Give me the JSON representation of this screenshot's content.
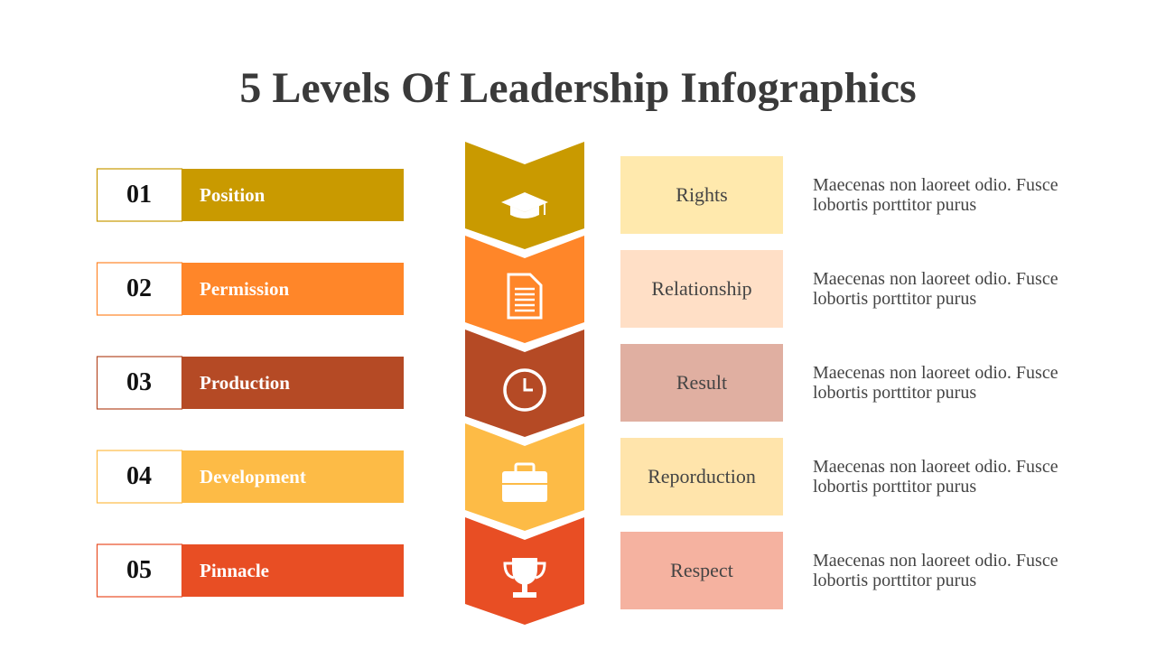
{
  "title": "5 Levels Of Leadership Infographics",
  "levels": [
    {
      "number": "01",
      "name": "Position",
      "keyword": "Rights",
      "description": "Maecenas non laoreet odio. Fusce lobortis porttitor purus",
      "color": "#C99A00",
      "pale": "#FFE9AD"
    },
    {
      "number": "02",
      "name": "Permission",
      "keyword": "Relationship",
      "description": "Maecenas non laoreet odio. Fusce lobortis porttitor purus",
      "color": "#FF8629",
      "pale": "#FFDFC6"
    },
    {
      "number": "03",
      "name": "Production",
      "keyword": "Result",
      "description": "Maecenas non laoreet odio. Fusce lobortis porttitor purus",
      "color": "#B54A25",
      "pale": "#E0AFA1"
    },
    {
      "number": "04",
      "name": "Development",
      "keyword": "Reporduction",
      "description": "Maecenas non laoreet odio. Fusce lobortis porttitor purus",
      "color": "#FDBB46",
      "pale": "#FFE4AB"
    },
    {
      "number": "05",
      "name": "Pinnacle",
      "keyword": "Respect",
      "description": "Maecenas non laoreet odio. Fusce lobortis porttitor purus",
      "color": "#E84E24",
      "pale": "#F5B2A0"
    }
  ]
}
